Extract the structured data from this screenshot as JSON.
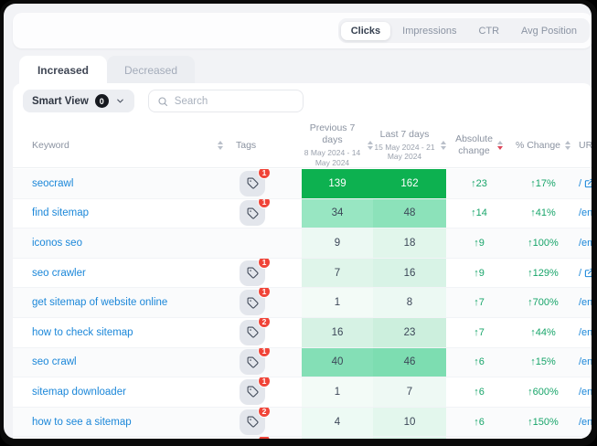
{
  "metric_tabs": {
    "items": [
      {
        "label": "Clicks",
        "active": true
      },
      {
        "label": "Impressions",
        "active": false
      },
      {
        "label": "CTR",
        "active": false
      },
      {
        "label": "Avg Position",
        "active": false
      }
    ]
  },
  "trend_tabs": {
    "items": [
      {
        "label": "Increased",
        "active": true
      },
      {
        "label": "Decreased",
        "active": false
      }
    ]
  },
  "toolbar": {
    "smart_view_label": "Smart View",
    "smart_view_count": "0",
    "search_placeholder": "Search"
  },
  "table": {
    "headers": {
      "keyword": "Keyword",
      "tags": "Tags",
      "prev_title": "Previous 7 days",
      "prev_range": "8 May 2024 - 14 May 2024",
      "last_title": "Last 7 days",
      "last_range": "15 May 2024 - 21 May 2024",
      "abs_line1": "Absolute",
      "abs_line2": "change",
      "pct": "% Change",
      "url": "URL"
    },
    "sort": {
      "active_column": "abs",
      "direction": "desc"
    },
    "rows": [
      {
        "keyword": "seocrawl",
        "tag_count": "1",
        "prev": "139",
        "last": "162",
        "abs": "↑23",
        "pct": "↑17%",
        "url": "/",
        "external": true,
        "prev_bg": "#0db150",
        "last_bg": "#0db150",
        "value_color": "#ffffff"
      },
      {
        "keyword": "find sitemap",
        "tag_count": "1",
        "prev": "34",
        "last": "48",
        "abs": "↑14",
        "pct": "↑41%",
        "url": "/en/",
        "external": false,
        "prev_bg": "#98e6c2",
        "last_bg": "#8ce2ba",
        "value_color": "#3c4758"
      },
      {
        "keyword": "iconos seo",
        "tag_count": null,
        "prev": "9",
        "last": "18",
        "abs": "↑9",
        "pct": "↑100%",
        "url": "/em",
        "external": false,
        "prev_bg": "#ecf9f3",
        "last_bg": "#e1f6eb",
        "value_color": "#3c4758"
      },
      {
        "keyword": "seo crawler",
        "tag_count": "1",
        "prev": "7",
        "last": "16",
        "abs": "↑9",
        "pct": "↑129%",
        "url": "/",
        "external": true,
        "prev_bg": "#dff5ea",
        "last_bg": "#d8f3e6",
        "value_color": "#3c4758"
      },
      {
        "keyword": "get sitemap of website online",
        "tag_count": "1",
        "prev": "1",
        "last": "8",
        "abs": "↑7",
        "pct": "↑700%",
        "url": "/en/",
        "external": false,
        "prev_bg": "#f3fbf7",
        "last_bg": "#ecf9f3",
        "value_color": "#3c4758"
      },
      {
        "keyword": "how to check sitemap",
        "tag_count": "2",
        "prev": "16",
        "last": "23",
        "abs": "↑7",
        "pct": "↑44%",
        "url": "/en/",
        "external": false,
        "prev_bg": "#d6f2e4",
        "last_bg": "#ccefdd",
        "value_color": "#3c4758"
      },
      {
        "keyword": "seo crawl",
        "tag_count": "1",
        "prev": "40",
        "last": "46",
        "abs": "↑6",
        "pct": "↑15%",
        "url": "/en/",
        "external": false,
        "prev_bg": "#84dfb6",
        "last_bg": "#7dddb1",
        "value_color": "#3c4758"
      },
      {
        "keyword": "sitemap downloader",
        "tag_count": "1",
        "prev": "1",
        "last": "7",
        "abs": "↑6",
        "pct": "↑600%",
        "url": "/en/",
        "external": false,
        "prev_bg": "#f3fbf7",
        "last_bg": "#eef9f4",
        "value_color": "#3c4758"
      },
      {
        "keyword": "how to see a sitemap",
        "tag_count": "2",
        "prev": "4",
        "last": "10",
        "abs": "↑6",
        "pct": "↑150%",
        "url": "/en/",
        "external": false,
        "prev_bg": "#edfaf4",
        "last_bg": "#e3f7ed",
        "value_color": "#3c4758"
      }
    ],
    "partial_row": {
      "has_tag": true,
      "prev_bg": "#e9f8f1",
      "last_bg": "#dff6ea"
    }
  },
  "colors": {
    "heat_max": "#0db150",
    "positive_change": "#18a56a",
    "keyword_link": "#1b87d9",
    "sort_active_arrow": "#dd4558",
    "tag_badge": "#f04438"
  }
}
